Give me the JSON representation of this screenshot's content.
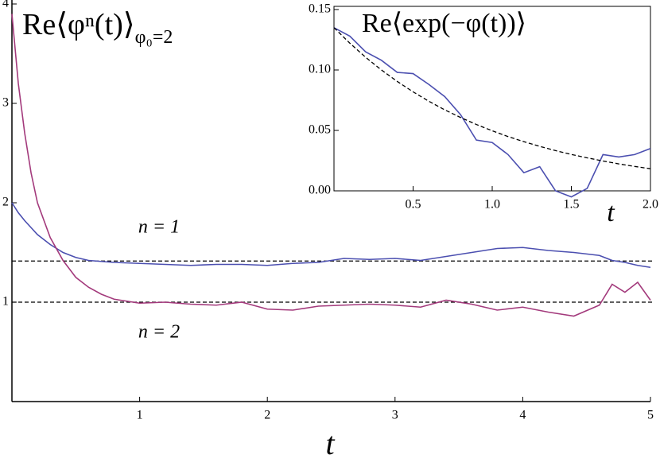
{
  "chart_data": [
    {
      "type": "line",
      "title": "Re⟨φⁿ(t)⟩",
      "title_subscript": "φ₀=2",
      "x_label": "t",
      "x": [
        0,
        0.05,
        0.1,
        0.15,
        0.2,
        0.3,
        0.4,
        0.5,
        0.6,
        0.7,
        0.8,
        1.0,
        1.2,
        1.4,
        1.6,
        1.8,
        2.0,
        2.2,
        2.4,
        2.6,
        2.8,
        3.0,
        3.2,
        3.4,
        3.6,
        3.8,
        4.0,
        4.2,
        4.4,
        4.6,
        4.7,
        4.8,
        4.9,
        5.0
      ],
      "series": [
        {
          "color": "#4b4fb0",
          "values": [
            2.0,
            1.9,
            1.82,
            1.75,
            1.68,
            1.58,
            1.5,
            1.45,
            1.42,
            1.41,
            1.4,
            1.39,
            1.38,
            1.37,
            1.38,
            1.38,
            1.37,
            1.39,
            1.4,
            1.44,
            1.43,
            1.44,
            1.42,
            1.46,
            1.5,
            1.54,
            1.55,
            1.52,
            1.5,
            1.47,
            1.42,
            1.4,
            1.37,
            1.35
          ]
        },
        {
          "color": "#a33a7c",
          "values": [
            3.9,
            3.2,
            2.7,
            2.3,
            2.0,
            1.65,
            1.42,
            1.25,
            1.15,
            1.08,
            1.03,
            0.99,
            1.0,
            0.98,
            0.97,
            1.0,
            0.93,
            0.92,
            0.96,
            0.97,
            0.98,
            0.97,
            0.95,
            1.02,
            0.98,
            0.92,
            0.95,
            0.9,
            0.86,
            0.97,
            1.18,
            1.1,
            1.2,
            1.02
          ]
        }
      ],
      "reference_lines": [
        1.414,
        1
      ],
      "annotations": [
        "n = 1",
        "n = 2"
      ],
      "xlim": [
        0,
        5
      ],
      "xticks": [
        1,
        2,
        3,
        4,
        5
      ],
      "ylim": [
        0,
        4
      ],
      "yticks": [
        1,
        2,
        3,
        4
      ]
    },
    {
      "type": "line",
      "title": "Re⟨exp(−φ(t))⟩",
      "x_label": "t",
      "x": [
        0,
        0.1,
        0.2,
        0.3,
        0.4,
        0.5,
        0.6,
        0.7,
        0.8,
        0.9,
        1.0,
        1.1,
        1.2,
        1.3,
        1.4,
        1.5,
        1.6,
        1.7,
        1.8,
        1.9,
        2.0
      ],
      "series": [
        {
          "color": "#4b4fb0",
          "values": [
            0.135,
            0.128,
            0.115,
            0.108,
            0.098,
            0.097,
            0.088,
            0.078,
            0.063,
            0.042,
            0.04,
            0.03,
            0.015,
            0.02,
            0.0,
            -0.005,
            0.002,
            0.03,
            0.028,
            0.03,
            0.035
          ]
        },
        {
          "color": "#000000",
          "dash": true,
          "values": [
            0.135,
            0.1222,
            0.1105,
            0.1,
            0.0905,
            0.0819,
            0.0741,
            0.067,
            0.0607,
            0.0549,
            0.0497,
            0.0449,
            0.0407,
            0.0368,
            0.0333,
            0.0301,
            0.0273,
            0.0247,
            0.0223,
            0.0202,
            0.0183
          ]
        }
      ],
      "xlim": [
        0,
        2
      ],
      "xticks": [
        0.5,
        {
          "value": 1,
          "label": "1.0"
        },
        1.5,
        {
          "value": 2,
          "label": "2.0"
        }
      ],
      "ylim": [
        0,
        0.15
      ],
      "yticks": [
        {
          "value": 0,
          "label": "0.00"
        },
        0.05,
        {
          "value": 0.1,
          "label": "0.10"
        },
        0.15
      ]
    }
  ]
}
